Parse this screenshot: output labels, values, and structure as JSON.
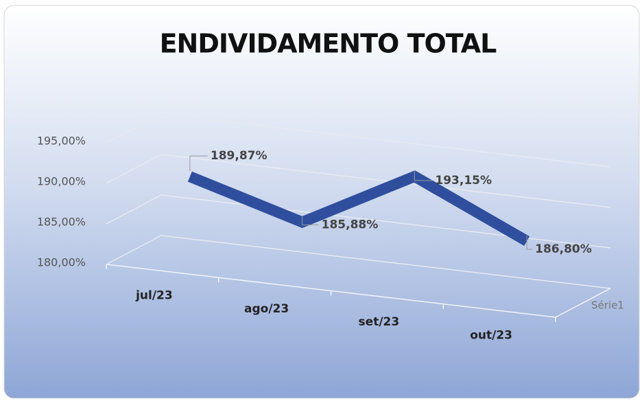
{
  "chart_data": {
    "type": "line3d",
    "title": "ENDIVIDAMENTO TOTAL",
    "categories": [
      "jul/23",
      "ago/23",
      "set/23",
      "out/23"
    ],
    "series": [
      {
        "name": "Série1",
        "color": "#2f4f9e",
        "values": [
          189.87,
          185.88,
          193.15,
          186.8
        ],
        "value_labels": [
          "189,87%",
          "185,88%",
          "193,15%",
          "186,80%"
        ]
      }
    ],
    "ylim": [
      180,
      195
    ],
    "yticks": [
      {
        "value": 180,
        "label": "180,00%"
      },
      {
        "value": 185,
        "label": "185,00%"
      },
      {
        "value": 190,
        "label": "190,00%"
      },
      {
        "value": 195,
        "label": "195,00%"
      }
    ],
    "grid": true
  }
}
